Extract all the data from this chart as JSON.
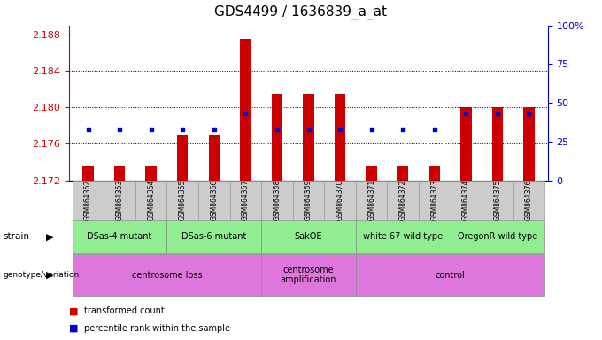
{
  "title": "GDS4499 / 1636839_a_at",
  "samples": [
    "GSM864362",
    "GSM864363",
    "GSM864364",
    "GSM864365",
    "GSM864366",
    "GSM864367",
    "GSM864368",
    "GSM864369",
    "GSM864370",
    "GSM864371",
    "GSM864372",
    "GSM864373",
    "GSM864374",
    "GSM864375",
    "GSM864376"
  ],
  "red_values": [
    2.1735,
    2.1735,
    2.1735,
    2.177,
    2.177,
    2.1875,
    2.1815,
    2.1815,
    2.1815,
    2.1735,
    2.1735,
    2.1735,
    2.18,
    2.18,
    2.18
  ],
  "blue_values": [
    33,
    33,
    33,
    33,
    33,
    43,
    33,
    33,
    33,
    33,
    33,
    33,
    43,
    43,
    43
  ],
  "ylim_left": [
    2.172,
    2.189
  ],
  "ylim_right": [
    0,
    100
  ],
  "yticks_left": [
    2.172,
    2.176,
    2.18,
    2.184,
    2.188
  ],
  "yticks_right": [
    0,
    25,
    50,
    75,
    100
  ],
  "strain_groups": [
    {
      "label": "DSas-4 mutant",
      "start": 0,
      "end": 2
    },
    {
      "label": "DSas-6 mutant",
      "start": 3,
      "end": 5
    },
    {
      "label": "SakOE",
      "start": 6,
      "end": 8
    },
    {
      "label": "white 67 wild type",
      "start": 9,
      "end": 11
    },
    {
      "label": "OregonR wild type",
      "start": 12,
      "end": 14
    }
  ],
  "genotype_groups": [
    {
      "label": "centrosome loss",
      "start": 0,
      "end": 5
    },
    {
      "label": "centrosome\namplification",
      "start": 6,
      "end": 8
    },
    {
      "label": "control",
      "start": 9,
      "end": 14
    }
  ],
  "bar_bottom": 2.172,
  "bar_color": "#CC0000",
  "dot_color": "#0000CC",
  "left_axis_color": "#CC0000",
  "right_axis_color": "#0000CC",
  "strain_color": "#90EE90",
  "geno_color": "#DD77DD",
  "xtick_box_color": "#CCCCCC",
  "xtick_box_edge": "#999999"
}
